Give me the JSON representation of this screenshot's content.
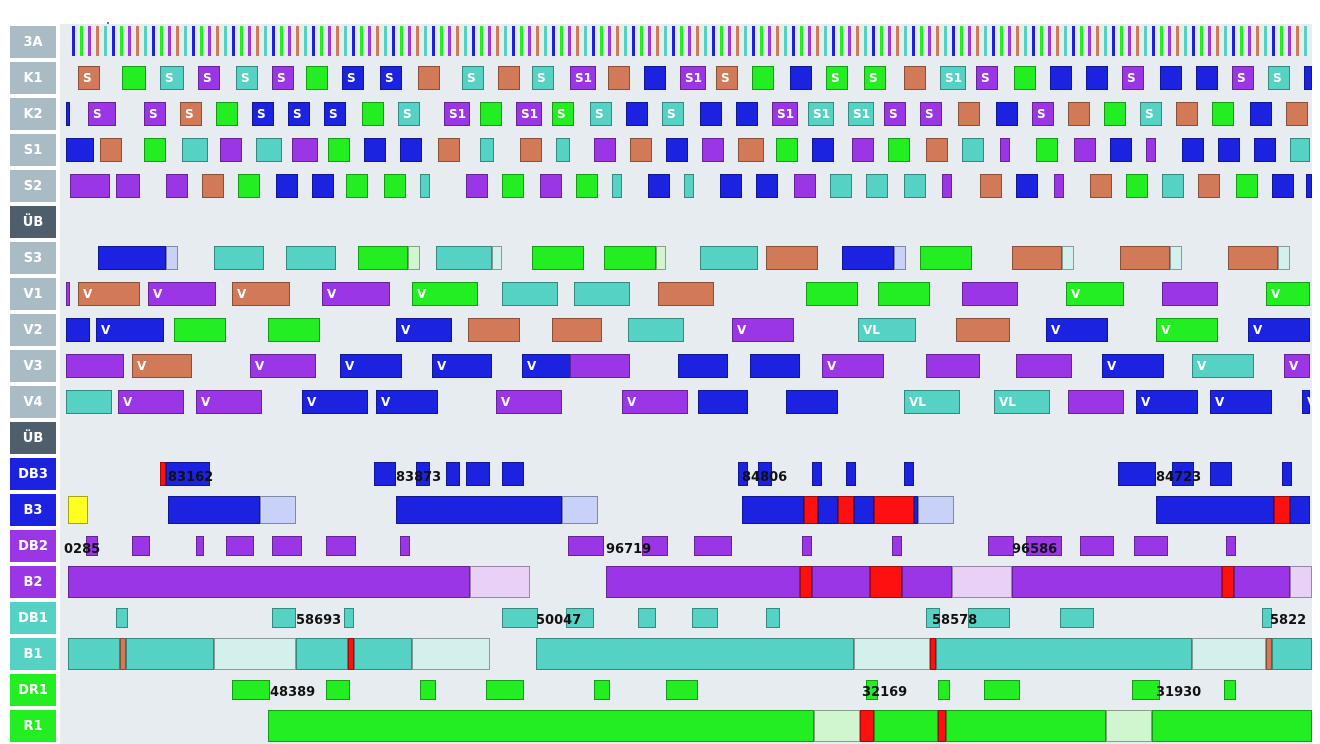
{
  "colors": {
    "blue": "#1b22e0",
    "purple": "#9a36e6",
    "teal": "#55d2c4",
    "green": "#22ee22",
    "orange": "#d27a58",
    "red": "#ff1010",
    "yellow": "#ffff20",
    "ghost_blue": "#c8d2f8",
    "ghost_purple": "#e8d0f6",
    "ghost_teal": "#d4f0ec",
    "ghost_green": "#cff6cf",
    "lane_bg": "#e7ecf0",
    "label_grey": "#a9bcc6",
    "label_dark": "#4e5f6b"
  },
  "lanes": [
    {
      "label": "3A",
      "bg": "#a9bcc6"
    },
    {
      "label": "K1",
      "bg": "#a9bcc6"
    },
    {
      "label": "K2",
      "bg": "#a9bcc6"
    },
    {
      "label": "S1",
      "bg": "#a9bcc6"
    },
    {
      "label": "S2",
      "bg": "#a9bcc6"
    },
    {
      "label": "ÜB",
      "bg": "#4e5f6b"
    },
    {
      "label": "S3",
      "bg": "#a9bcc6"
    },
    {
      "label": "V1",
      "bg": "#a9bcc6"
    },
    {
      "label": "V2",
      "bg": "#a9bcc6"
    },
    {
      "label": "V3",
      "bg": "#a9bcc6"
    },
    {
      "label": "V4",
      "bg": "#a9bcc6"
    },
    {
      "label": "ÜB",
      "bg": "#4e5f6b"
    },
    {
      "label": "DB3",
      "bg": "#1b22e0"
    },
    {
      "label": "B3",
      "bg": "#1b22e0"
    },
    {
      "label": "DB2",
      "bg": "#9a36e6"
    },
    {
      "label": "B2",
      "bg": "#9a36e6"
    },
    {
      "label": "DB1",
      "bg": "#55d2c4"
    },
    {
      "label": "B1",
      "bg": "#55d2c4"
    },
    {
      "label": "DR1",
      "bg": "#22ee22"
    },
    {
      "label": "R1",
      "bg": "#22ee22"
    }
  ],
  "block_letters": {
    "s": "S",
    "s1": "S1",
    "v": "V",
    "vl": "VL"
  },
  "batch_numbers": {
    "b3": [
      "83162",
      "83873",
      "84806",
      "84723"
    ],
    "b2": [
      "0285",
      "96719",
      "96586"
    ],
    "b1": [
      "58693",
      "50047",
      "58578",
      "5822"
    ],
    "r1": [
      "48389",
      "32169",
      "31930"
    ]
  }
}
